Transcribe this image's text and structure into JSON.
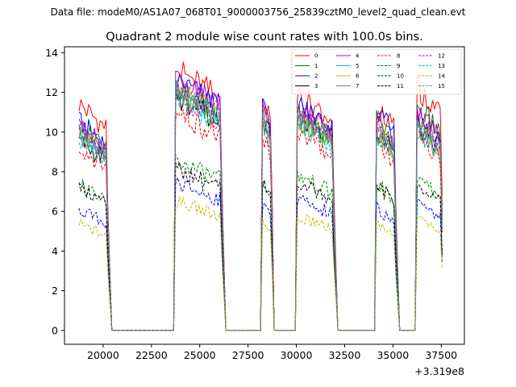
{
  "header": {
    "data_file": "Data file: modeM0/AS1A07_068T01_9000003756_25839cztM0_level2_quad_clean.evt"
  },
  "chart_data": {
    "type": "line",
    "title": "Quadrant 2 module wise count rates with 100.0s bins.",
    "xlabel": "",
    "ylabel": "",
    "x_offset_label": "+3.319e8",
    "xlim": [
      18000,
      38700
    ],
    "ylim": [
      -0.7,
      14.3
    ],
    "x_ticks": [
      20000,
      22500,
      25000,
      27500,
      30000,
      32500,
      35000,
      37500
    ],
    "x_tick_labels": [
      "20000",
      "22500",
      "25000",
      "27500",
      "30000",
      "32500",
      "35000",
      "37500"
    ],
    "y_ticks": [
      0,
      2,
      4,
      6,
      8,
      10,
      12,
      14
    ],
    "y_tick_labels": [
      "0",
      "2",
      "4",
      "6",
      "8",
      "10",
      "12",
      "14"
    ],
    "segments": [
      {
        "start": 18750,
        "end": 20250
      },
      {
        "start": 23750,
        "end": 26150
      },
      {
        "start": 28250,
        "end": 28750
      },
      {
        "start": 30050,
        "end": 31950
      },
      {
        "start": 34150,
        "end": 35150
      },
      {
        "start": 36250,
        "end": 37550
      }
    ],
    "zero_intervals": [
      [
        20450,
        23650
      ],
      [
        26350,
        28150
      ],
      [
        28850,
        29950
      ],
      [
        32150,
        34050
      ],
      [
        35350,
        36150
      ]
    ],
    "series": [
      {
        "name": "0",
        "color": "#ff0000",
        "dash": "solid",
        "levels": [
          11.1,
          12.8,
          11.3,
          11.6,
          11.0,
          11.9
        ]
      },
      {
        "name": "1",
        "color": "#008000",
        "dash": "solid",
        "levels": [
          10.0,
          11.9,
          10.6,
          10.6,
          10.3,
          10.9
        ]
      },
      {
        "name": "2",
        "color": "#0000ff",
        "dash": "solid",
        "levels": [
          10.2,
          12.3,
          10.9,
          11.1,
          10.7,
          10.3
        ]
      },
      {
        "name": "3",
        "color": "#000000",
        "dash": "solid",
        "levels": [
          9.3,
          11.5,
          10.3,
          10.5,
          9.8,
          10.0
        ]
      },
      {
        "name": "4",
        "color": "#bf00bf",
        "dash": "solid",
        "levels": [
          10.1,
          12.6,
          10.8,
          10.9,
          10.4,
          10.8
        ]
      },
      {
        "name": "5",
        "color": "#00bfbf",
        "dash": "solid",
        "levels": [
          9.6,
          11.6,
          10.1,
          10.2,
          9.6,
          9.8
        ]
      },
      {
        "name": "6",
        "color": "#bfbf00",
        "dash": "solid",
        "levels": [
          9.7,
          11.8,
          10.0,
          10.3,
          9.9,
          10.1
        ]
      },
      {
        "name": "7",
        "color": "#808080",
        "dash": "solid",
        "levels": [
          9.5,
          11.7,
          10.2,
          10.4,
          9.6,
          9.9
        ]
      },
      {
        "name": "8",
        "color": "#ff0000",
        "dash": "dashed",
        "levels": [
          9.0,
          10.7,
          9.6,
          9.7,
          9.1,
          9.5
        ]
      },
      {
        "name": "9",
        "color": "#008000",
        "dash": "dashed",
        "levels": [
          7.1,
          8.3,
          7.4,
          7.6,
          7.2,
          7.4
        ]
      },
      {
        "name": "10",
        "color": "#0000ff",
        "dash": "dashed",
        "levels": [
          5.9,
          7.2,
          6.2,
          6.4,
          6.0,
          6.2
        ]
      },
      {
        "name": "11",
        "color": "#000000",
        "dash": "dashed",
        "levels": [
          7.0,
          7.9,
          7.2,
          7.3,
          7.1,
          7.2
        ]
      },
      {
        "name": "12",
        "color": "#bf00bf",
        "dash": "dashed",
        "levels": [
          9.8,
          11.6,
          10.4,
          10.6,
          10.0,
          10.3
        ]
      },
      {
        "name": "13",
        "color": "#00bfbf",
        "dash": "dashed",
        "levels": [
          9.4,
          11.4,
          10.0,
          10.1,
          9.5,
          9.8
        ]
      },
      {
        "name": "14",
        "color": "#bfbf00",
        "dash": "dashed",
        "levels": [
          5.2,
          6.3,
          5.4,
          5.6,
          5.2,
          5.5
        ]
      },
      {
        "name": "15",
        "color": "#808080",
        "dash": "dashed",
        "levels": [
          9.8,
          11.9,
          10.5,
          10.6,
          10.1,
          10.4
        ]
      }
    ]
  }
}
